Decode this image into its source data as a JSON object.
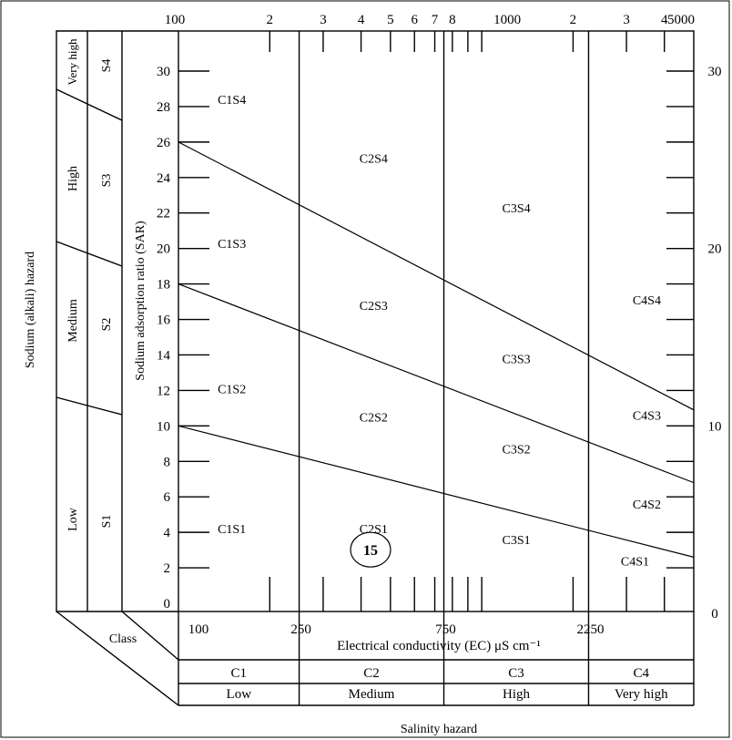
{
  "chart_data": {
    "type": "line",
    "top_axis_ticks": [
      "100",
      "2",
      "3",
      "4",
      "5",
      "6",
      "7",
      "8",
      "1000",
      "2",
      "3",
      "4",
      "5000"
    ],
    "bottom_axis_ticks": [
      "100",
      "250",
      "750",
      "2250"
    ],
    "xlabel": "Electrical conductivity (EC) μS cm⁻¹",
    "ylabel": "Sodium adsorption ratio (SAR)",
    "x_scale": "log",
    "xlim": [
      100,
      5000
    ],
    "left_ticks": [
      0,
      2,
      4,
      6,
      8,
      10,
      12,
      14,
      16,
      18,
      20,
      22,
      24,
      26,
      28,
      30
    ],
    "right_ticks": [
      0,
      10,
      20,
      30
    ],
    "ylim": [
      0,
      32
    ],
    "boundaries": [
      {
        "x": [
          100,
          5000
        ],
        "y": [
          10,
          2.6
        ]
      },
      {
        "x": [
          100,
          5000
        ],
        "y": [
          18,
          6.8
        ]
      },
      {
        "x": [
          100,
          5000
        ],
        "y": [
          26,
          10.9
        ]
      }
    ],
    "salinity_dividers": [
      250,
      750,
      2250
    ],
    "regions": [
      {
        "label": "C1S4",
        "x": 150,
        "y": 28.4
      },
      {
        "label": "C1S3",
        "x": 150,
        "y": 20.3
      },
      {
        "label": "C1S2",
        "x": 150,
        "y": 12.1
      },
      {
        "label": "C1S1",
        "x": 150,
        "y": 4.2
      },
      {
        "label": "C2S4",
        "x": 440,
        "y": 25.1
      },
      {
        "label": "C2S3",
        "x": 440,
        "y": 16.8
      },
      {
        "label": "C2S2",
        "x": 440,
        "y": 10.5
      },
      {
        "label": "C2S1",
        "x": 440,
        "y": 4.2
      },
      {
        "label": "C3S4",
        "x": 1300,
        "y": 22.3
      },
      {
        "label": "C3S3",
        "x": 1300,
        "y": 13.8
      },
      {
        "label": "C3S2",
        "x": 1300,
        "y": 8.7
      },
      {
        "label": "C3S1",
        "x": 1300,
        "y": 3.6
      },
      {
        "label": "C4S4",
        "x": 3500,
        "y": 17.1
      },
      {
        "label": "C4S3",
        "x": 3500,
        "y": 10.6
      },
      {
        "label": "C4S2",
        "x": 3500,
        "y": 5.6
      },
      {
        "label": "C4S1",
        "x": 3200,
        "y": 2.4
      }
    ],
    "sample_point": {
      "label": "15",
      "x": 430,
      "y": 2.2
    }
  },
  "sodium_hazard": {
    "title": "Sodium (alkali) hazard",
    "levels": [
      {
        "name": "Very high",
        "class": "S4"
      },
      {
        "name": "High",
        "class": "S3"
      },
      {
        "name": "Medium",
        "class": "S2"
      },
      {
        "name": "Low",
        "class": "S1"
      }
    ]
  },
  "salinity_hazard": {
    "title": "Salinity hazard",
    "class_label": "Class",
    "classes": [
      "C1",
      "C2",
      "C3",
      "C4"
    ],
    "levels": [
      "Low",
      "Medium",
      "High",
      "Very high"
    ]
  }
}
